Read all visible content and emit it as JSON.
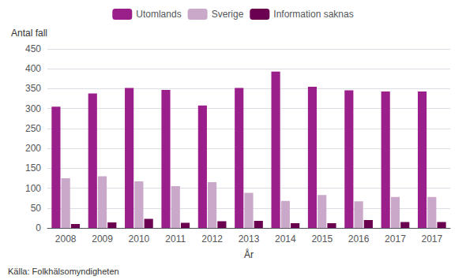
{
  "chart_data": {
    "type": "bar",
    "categories": [
      "2008",
      "2009",
      "2010",
      "2011",
      "2012",
      "2013",
      "2014",
      "2015",
      "2016",
      "2017",
      "2017"
    ],
    "series": [
      {
        "name": "Utomlands",
        "color": "#9B1F8A",
        "values": [
          305,
          338,
          352,
          347,
          308,
          352,
          393,
          355,
          346,
          343,
          343
        ]
      },
      {
        "name": "Sverige",
        "color": "#C9A8C9",
        "values": [
          125,
          130,
          117,
          105,
          115,
          88,
          68,
          83,
          67,
          78,
          78
        ]
      },
      {
        "name": "Information saknas",
        "color": "#6B0050",
        "values": [
          10,
          14,
          23,
          13,
          17,
          18,
          12,
          12,
          20,
          15,
          15
        ]
      }
    ],
    "xlabel": "År",
    "ylabel": "Antal fall",
    "source": "Källa: Folkhälsomyndigheten",
    "ylim": [
      0,
      450
    ],
    "yticks": [
      0,
      50,
      100,
      150,
      200,
      250,
      300,
      350,
      400,
      450
    ],
    "grid": true,
    "legend": "top"
  }
}
